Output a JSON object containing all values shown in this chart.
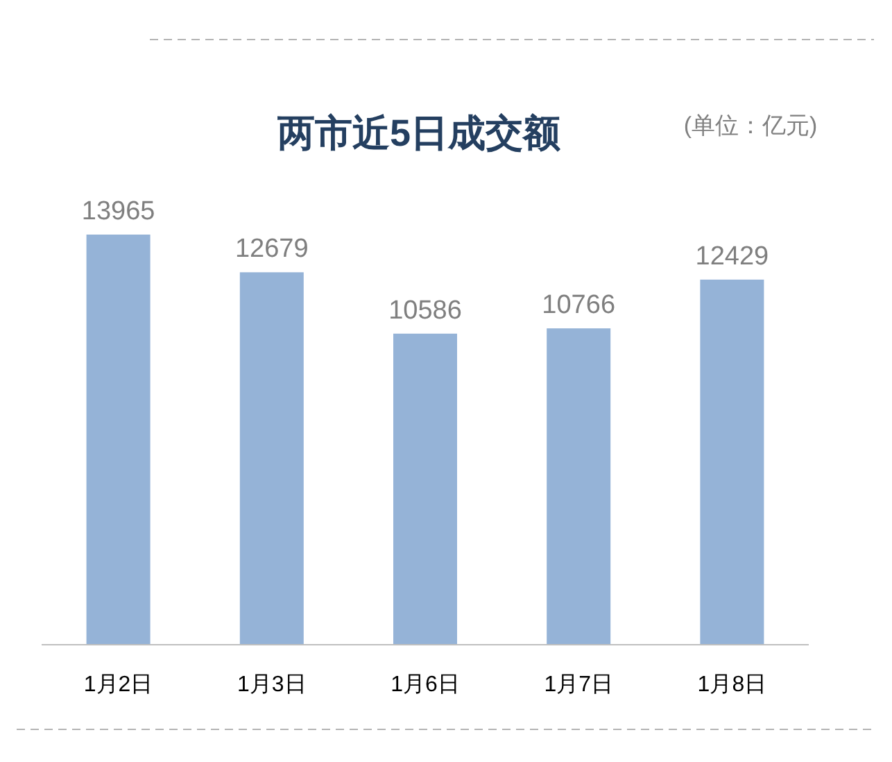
{
  "chart_data": {
    "type": "bar",
    "title": "两市近5日成交额",
    "subtitle": "(单位：亿元)",
    "categories": [
      "1月2日",
      "1月3日",
      "1月6日",
      "1月7日",
      "1月8日"
    ],
    "values": [
      13965,
      12679,
      10586,
      10766,
      12429
    ],
    "color": "#95b3d7",
    "data_labels": true
  }
}
